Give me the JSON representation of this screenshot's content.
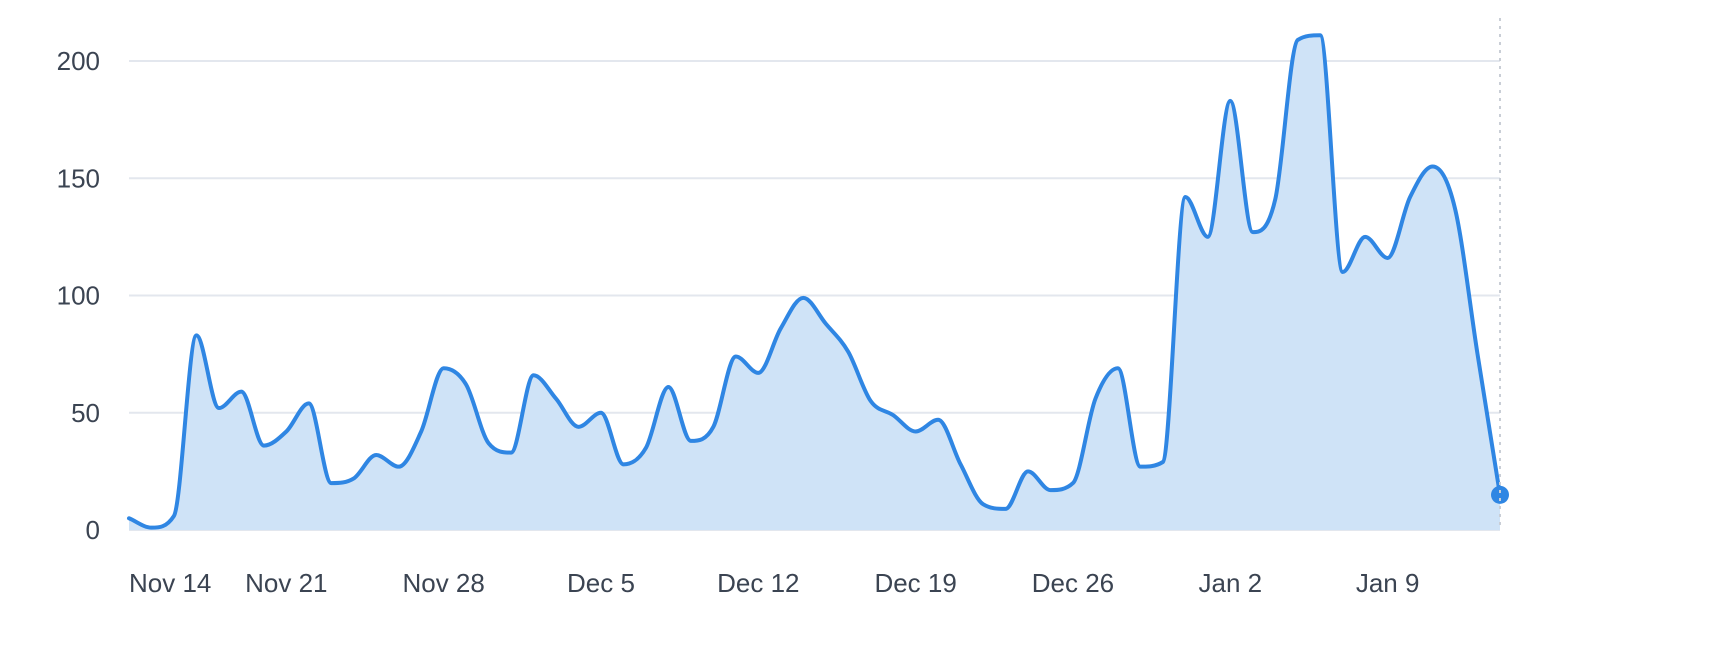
{
  "chart_data": {
    "type": "area",
    "title": "",
    "xlabel": "",
    "ylabel": "",
    "ylim": [
      0,
      220
    ],
    "yticks": [
      0,
      50,
      100,
      150,
      200
    ],
    "ytick_labels": [
      "0",
      "50",
      "100",
      "150",
      "200"
    ],
    "xtick_labels": [
      "Nov 14",
      "Nov 21",
      "Nov 28",
      "Dec 5",
      "Dec 12",
      "Dec 19",
      "Dec 26",
      "Jan 2",
      "Jan 9"
    ],
    "grid": true,
    "colors": {
      "line": "#2f86e3",
      "fill": "#cfe3f7"
    },
    "x": [
      "Nov 14",
      "Nov 15",
      "Nov 16",
      "Nov 17",
      "Nov 18",
      "Nov 19",
      "Nov 20",
      "Nov 21",
      "Nov 22",
      "Nov 23",
      "Nov 24",
      "Nov 25",
      "Nov 26",
      "Nov 27",
      "Nov 28",
      "Nov 29",
      "Nov 30",
      "Dec 1",
      "Dec 2",
      "Dec 3",
      "Dec 4",
      "Dec 5",
      "Dec 6",
      "Dec 7",
      "Dec 8",
      "Dec 9",
      "Dec 10",
      "Dec 11",
      "Dec 12",
      "Dec 13",
      "Dec 14",
      "Dec 15",
      "Dec 16",
      "Dec 17",
      "Dec 18",
      "Dec 19",
      "Dec 20",
      "Dec 21",
      "Dec 22",
      "Dec 23",
      "Dec 24",
      "Dec 25",
      "Dec 26",
      "Dec 27",
      "Dec 28",
      "Dec 29",
      "Dec 30",
      "Dec 31",
      "Jan 1",
      "Jan 2",
      "Jan 3",
      "Jan 4",
      "Jan 5",
      "Jan 6",
      "Jan 7",
      "Jan 8",
      "Jan 9",
      "Jan 10",
      "Jan 11",
      "Jan 12",
      "Jan 13",
      "Jan 14"
    ],
    "values": [
      5,
      1,
      6,
      83,
      52,
      59,
      36,
      42,
      54,
      20,
      22,
      32,
      27,
      42,
      69,
      62,
      37,
      33,
      66,
      56,
      44,
      50,
      28,
      35,
      61,
      38,
      44,
      74,
      67,
      86,
      99,
      88,
      76,
      55,
      49,
      42,
      47,
      28,
      11,
      9,
      25,
      17,
      20,
      56,
      69,
      27,
      29,
      142,
      125,
      183,
      127,
      141,
      209,
      211,
      110,
      125,
      116,
      142,
      155,
      137,
      75,
      15
    ]
  }
}
